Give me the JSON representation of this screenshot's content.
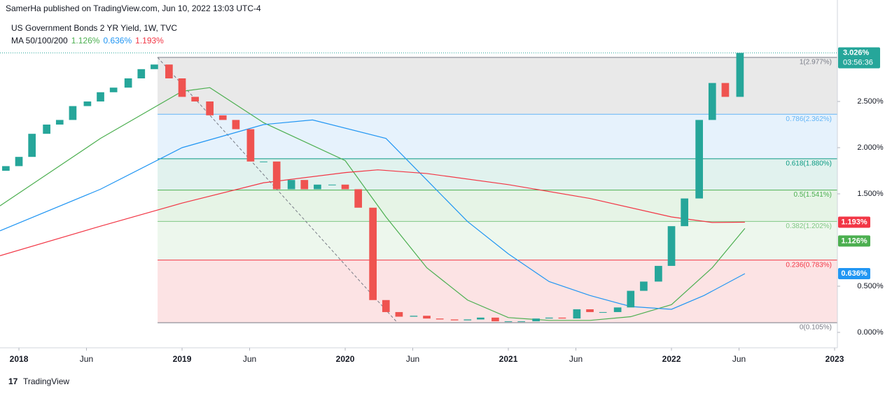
{
  "header": {
    "publisher": "SamerHa published on TradingView.com, Jun 10, 2022 13:03 UTC-4",
    "brand": "TradingView"
  },
  "chart_data": {
    "type": "candlestick",
    "title": "US Government Bonds 2 YR Yield, 1W, TVC",
    "up_color": "#26a69a",
    "down_color": "#ef5350",
    "x": [
      2017.92,
      2018.0,
      2018.08,
      2018.17,
      2018.25,
      2018.33,
      2018.42,
      2018.5,
      2018.58,
      2018.67,
      2018.75,
      2018.83,
      2018.92,
      2019.0,
      2019.08,
      2019.17,
      2019.25,
      2019.33,
      2019.42,
      2019.5,
      2019.58,
      2019.67,
      2019.75,
      2019.83,
      2019.92,
      2020.0,
      2020.08,
      2020.17,
      2020.25,
      2020.33,
      2020.42,
      2020.5,
      2020.58,
      2020.67,
      2020.75,
      2020.83,
      2020.92,
      2021.0,
      2021.08,
      2021.17,
      2021.25,
      2021.33,
      2021.42,
      2021.5,
      2021.58,
      2021.67,
      2021.75,
      2021.83,
      2021.92,
      2022.0,
      2022.08,
      2022.17,
      2022.25,
      2022.33,
      2022.42
    ],
    "open": [
      1.75,
      1.8,
      1.9,
      2.15,
      2.25,
      2.3,
      2.45,
      2.5,
      2.6,
      2.65,
      2.75,
      2.85,
      2.9,
      2.75,
      2.55,
      2.5,
      2.35,
      2.3,
      2.2,
      1.85,
      1.85,
      1.55,
      1.65,
      1.55,
      1.6,
      1.6,
      1.55,
      1.35,
      0.35,
      0.22,
      0.17,
      0.18,
      0.15,
      0.14,
      0.13,
      0.14,
      0.16,
      0.12,
      0.12,
      0.12,
      0.15,
      0.16,
      0.15,
      0.25,
      0.22,
      0.22,
      0.27,
      0.45,
      0.55,
      0.72,
      1.15,
      1.45,
      2.3,
      2.7,
      2.55
    ],
    "close": [
      1.8,
      1.9,
      2.15,
      2.25,
      2.3,
      2.45,
      2.5,
      2.6,
      2.65,
      2.75,
      2.85,
      2.9,
      2.75,
      2.55,
      2.5,
      2.35,
      2.3,
      2.2,
      1.85,
      1.85,
      1.55,
      1.65,
      1.55,
      1.6,
      1.6,
      1.55,
      1.35,
      0.35,
      0.22,
      0.17,
      0.18,
      0.15,
      0.14,
      0.13,
      0.14,
      0.16,
      0.12,
      0.12,
      0.12,
      0.15,
      0.16,
      0.15,
      0.25,
      0.22,
      0.22,
      0.27,
      0.45,
      0.55,
      0.72,
      1.15,
      1.45,
      2.3,
      2.7,
      2.55,
      3.026
    ],
    "last": {
      "value": 3.026,
      "label": "3.026%",
      "countdown": "03:56:36"
    },
    "xlim": [
      2017.884,
      2023.017
    ],
    "ylim": [
      -0.167,
      3.144
    ],
    "xticks": [
      {
        "value": 2018,
        "label": "2018"
      },
      {
        "value": 2018.414,
        "label": "Jun"
      },
      {
        "value": 2019,
        "label": "2019"
      },
      {
        "value": 2019.414,
        "label": "Jun"
      },
      {
        "value": 2020,
        "label": "2020"
      },
      {
        "value": 2020.414,
        "label": "Jun"
      },
      {
        "value": 2021,
        "label": "2021"
      },
      {
        "value": 2021.414,
        "label": "Jun"
      },
      {
        "value": 2022,
        "label": "2022"
      },
      {
        "value": 2022.414,
        "label": "Jun"
      },
      {
        "value": 2023,
        "label": "2023"
      }
    ],
    "yticks": [
      {
        "value": 0,
        "label": "0.000%"
      },
      {
        "value": 0.5,
        "label": "0.500%"
      },
      {
        "value": 1.5,
        "label": "1.500%"
      },
      {
        "value": 2,
        "label": "2.000%"
      },
      {
        "value": 2.5,
        "label": "2.500%"
      }
    ],
    "ma": {
      "label": "MA 50/100/200",
      "series": [
        {
          "name": "MA 50",
          "color": "#4caf50",
          "x": [
            2017.884,
            2018.5,
            2019.0,
            2019.17,
            2019.5,
            2020.0,
            2020.25,
            2020.5,
            2020.75,
            2021.0,
            2021.25,
            2021.5,
            2021.75,
            2022.0,
            2022.25,
            2022.45
          ],
          "values": [
            1.37,
            2.1,
            2.61,
            2.65,
            2.27,
            1.86,
            1.25,
            0.7,
            0.35,
            0.16,
            0.13,
            0.13,
            0.17,
            0.3,
            0.7,
            1.126
          ],
          "last": 1.126,
          "last_label": "1.126%"
        },
        {
          "name": "MA 100",
          "color": "#2196f3",
          "x": [
            2017.884,
            2018.5,
            2019.0,
            2019.5,
            2019.8,
            2020.25,
            2020.5,
            2020.75,
            2021.0,
            2021.25,
            2021.5,
            2021.75,
            2022.0,
            2022.2,
            2022.45
          ],
          "values": [
            1.1,
            1.55,
            2.0,
            2.25,
            2.3,
            2.1,
            1.65,
            1.2,
            0.85,
            0.55,
            0.4,
            0.28,
            0.25,
            0.4,
            0.636
          ],
          "last": 0.636,
          "last_label": "0.636%"
        },
        {
          "name": "MA 200",
          "color": "#f23645",
          "x": [
            2017.884,
            2018.5,
            2019.0,
            2019.5,
            2020.0,
            2020.2,
            2020.5,
            2021.0,
            2021.5,
            2022.0,
            2022.25,
            2022.45
          ],
          "values": [
            0.83,
            1.15,
            1.4,
            1.62,
            1.73,
            1.76,
            1.72,
            1.6,
            1.45,
            1.25,
            1.19,
            1.193
          ],
          "last": 1.193,
          "last_label": "1.193%"
        }
      ]
    },
    "fib": {
      "start": 2018.85,
      "trend_end": [
        2020.32,
        0.105
      ],
      "levels": [
        {
          "value": 2.977,
          "label": "1(2.977%)",
          "color": "#787b86",
          "fill": "#e0e0e0"
        },
        {
          "value": 2.362,
          "label": "0.786(2.362%)",
          "color": "#64b5f6",
          "fill": "#dcecfb"
        },
        {
          "value": 1.88,
          "label": "0.618(1.880%)",
          "color": "#089981",
          "fill": "#d4ece7"
        },
        {
          "value": 1.541,
          "label": "0.5(1.541%)",
          "color": "#4caf50",
          "fill": "#dcefdc"
        },
        {
          "value": 1.202,
          "label": "0.382(1.202%)",
          "color": "#81c784",
          "fill": "#e6f4e6"
        },
        {
          "value": 0.783,
          "label": "0.236(0.783%)",
          "color": "#f23645",
          "fill": "#fbd7d9"
        },
        {
          "value": 0.105,
          "label": "0(0.105%)",
          "color": "#787b86"
        }
      ]
    }
  }
}
